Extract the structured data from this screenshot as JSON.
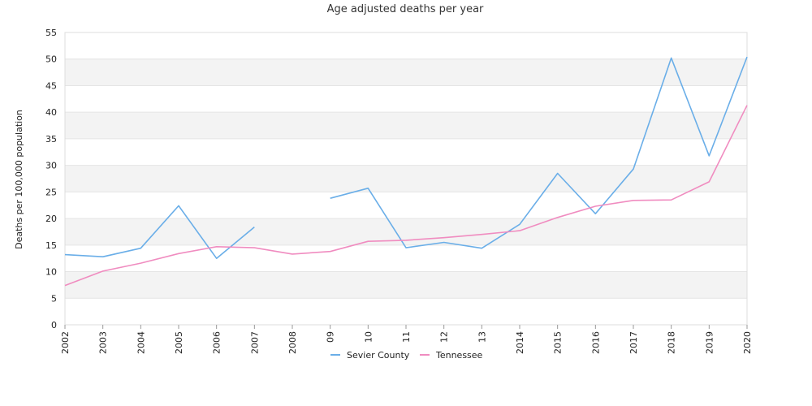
{
  "chart_data": {
    "type": "line",
    "title": "Age adjusted deaths per year",
    "ylabel": "Deaths per 100,000 population",
    "xlabel": "",
    "ylim": [
      0,
      55
    ],
    "yticks": [
      0,
      5,
      10,
      15,
      20,
      25,
      30,
      35,
      40,
      45,
      50,
      55
    ],
    "grid": "horizontal alternating bands",
    "legend_position": "bottom-center",
    "categories": [
      "2002",
      "2003",
      "2004",
      "2005",
      "2006",
      "2007",
      "2008",
      "09",
      "10",
      "11",
      "12",
      "13",
      "2014",
      "2015",
      "2016",
      "2017",
      "2018",
      "2019",
      "2020"
    ],
    "series": [
      {
        "name": "Sevier County",
        "color": "#6aaee8",
        "values": [
          13.2,
          12.8,
          14.4,
          22.4,
          12.5,
          18.4,
          null,
          23.8,
          25.7,
          14.5,
          15.5,
          14.4,
          18.9,
          28.5,
          20.9,
          29.3,
          50.2,
          31.8,
          50.4
        ]
      },
      {
        "name": "Tennessee",
        "color": "#f08cc0",
        "values": [
          7.4,
          10.1,
          11.6,
          13.4,
          14.7,
          14.5,
          13.3,
          13.8,
          15.7,
          15.9,
          16.4,
          17.0,
          17.7,
          20.2,
          22.3,
          23.4,
          23.5,
          26.9,
          41.3
        ]
      }
    ]
  }
}
